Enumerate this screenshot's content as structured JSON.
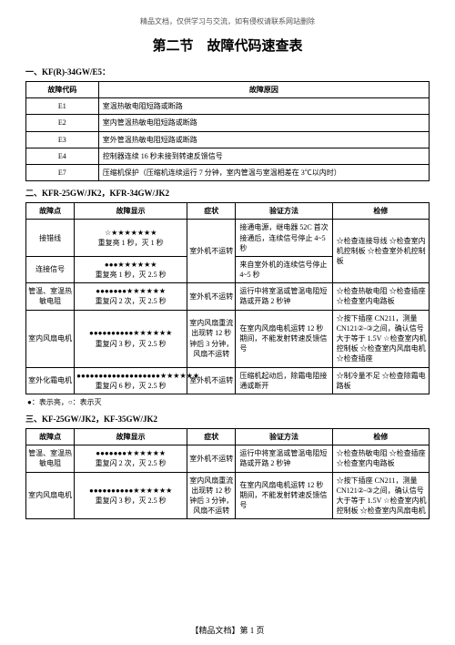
{
  "top_note": "精品文档，仅供学习与交流，如有侵权请联系网站删除",
  "main_title": "第二节　故障代码速查表",
  "section1": {
    "title": "一、KF(R)-34GW/E5：",
    "headers": [
      "故障代码",
      "故障原因"
    ],
    "rows": [
      [
        "E1",
        "室温热敏电阻短路或断路"
      ],
      [
        "E2",
        "室内管温热敏电阻短路或断路"
      ],
      [
        "E3",
        "室外管温热敏电阻短路或断路"
      ],
      [
        "E4",
        "控制器连续 16 秒未接到转速反馈信号"
      ],
      [
        "E7",
        "压缩机保护（压缩机连续运行 7 分钟，室内管温与室温相差在 3℃以内时）"
      ]
    ]
  },
  "section2": {
    "title": "二、KFR-25GW/JK2，KFR-34GW/JK2",
    "headers": [
      "故障点",
      "故障显示",
      "症状",
      "验证方法",
      "检修"
    ],
    "rows": [
      {
        "c1": "接错线",
        "c2top": "☆★★★★★★★",
        "c2bot": "重复亮 1 秒，灭 1 秒",
        "c3": "室外机不运转",
        "c4": "接通电源，继电器 52C 首次接通后，连续信号停止 4~5 秒",
        "c5": "☆检查连接导线\n☆检查室内机控制板\n☆检查室外机控制板"
      },
      {
        "c1": "连接信号",
        "c2top": "●●●★★★★★★",
        "c2bot": "重复亮 1 秒，灭 2.5 秒",
        "c3": "",
        "c4": "来自室外机的连续信号停止 4~5 秒",
        "c5": "☆检查电部件"
      },
      {
        "c1": "管温、室温热敏电阻",
        "c2top": "●●●●●●●★★★★★★",
        "c2bot": "重复闪 2 次，灭 2.5 秒",
        "c3": "室外机不运转",
        "c4": "运行中将室温或管温电阻短路或开路 2 秒钟",
        "c5": "☆检查热敏电阻\n☆检查插座\n☆检查室内电路板"
      },
      {
        "c1": "室内风扇电机",
        "c2top": "●●●●●●●●●●★★★★★★",
        "c2bot": "重复闪 3 秒，灭 2.5 秒",
        "c3": "室内风扇重流出现转 12 秒钟后 3 分钟，风扇不运转",
        "c4": "在室内风扇电机运转 12 秒期间，不能发射转速反馈信号",
        "c5": "☆按下插座 CN211，测量 CN121②-③之间，确认信号大于等于 1.5V\n☆检查室内机控制板\n☆检查室内风扇电机\n☆检查插座"
      },
      {
        "c1": "室外化霜电机",
        "c2top": "●●●●●●●●●●●●●●●●●●●★★★★★★",
        "c2bot": "重复闪 6 秒，灭 2.5 秒",
        "c3": "室外机不运转",
        "c4": "压缩机起动后，除霜电阻接通或断开",
        "c5": "☆制冷量不足\n☆检查除霜电路板"
      }
    ],
    "note": "●：表示亮，○：表示灭"
  },
  "section3": {
    "title": "三、KF-25GW/JK2，KF-35GW/JK2",
    "headers": [
      "故障点",
      "故障显示",
      "症状",
      "验证方法",
      "检修"
    ],
    "rows": [
      {
        "c1": "管温、室温热敏电阻",
        "c2top": "●●●●●●●★★★★★★",
        "c2bot": "重复闪 2 次，灭 2.5 秒",
        "c3": "室外机不运转",
        "c4": "运行中将室温或管温电阻短路或开路 2 秒钟",
        "c5": "☆检查热敏电阻\n☆检查插座\n☆检查室内电路板"
      },
      {
        "c1": "室内风扇电机",
        "c2top": "●●●●●●●●●●★★★★★★",
        "c2bot": "重复闪 3 秒，灭 2.5 秒",
        "c3": "室内风扇重流出现转 12 秒钟后 3 分钟，风扇不运转",
        "c4": "在室内风扇电机运转 12 秒期间，不能发射转速反馈信号",
        "c5": "☆按下插座 CN211，测量 CN121②-③之间，确认信号大于等于 1.5V\n☆检查室内机控制板\n☆检查室内风扇电机"
      }
    ]
  },
  "footer": "【精品文档】第 1 页"
}
